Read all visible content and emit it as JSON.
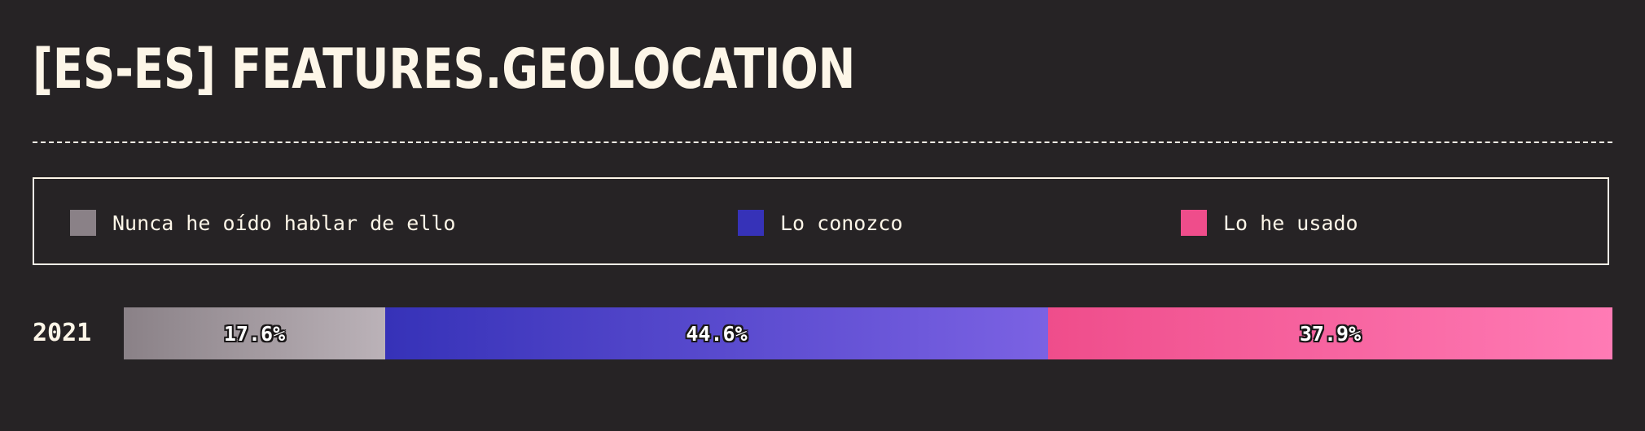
{
  "title": "[ES-ES] FEATURES.GEOLOCATION",
  "colors": {
    "background": "#262325",
    "text": "#fdf6e8",
    "never_heard": [
      "#8a8187",
      "#bbb2b8"
    ],
    "know_it": [
      "#3632b8",
      "#7b62e3"
    ],
    "used_it": [
      "#ef4d8b",
      "#ff7bb5"
    ]
  },
  "chart_data": {
    "type": "bar",
    "orientation": "horizontal-stacked",
    "unit": "%",
    "categories": [
      "2021"
    ],
    "series": [
      {
        "name": "Nunca he oído hablar de ello",
        "values": [
          17.6
        ],
        "label": "17.6%"
      },
      {
        "name": "Lo conozco",
        "values": [
          44.6
        ],
        "label": "44.6%"
      },
      {
        "name": "Lo he usado",
        "values": [
          37.9
        ],
        "label": "37.9%"
      }
    ],
    "legend_position": "top"
  }
}
